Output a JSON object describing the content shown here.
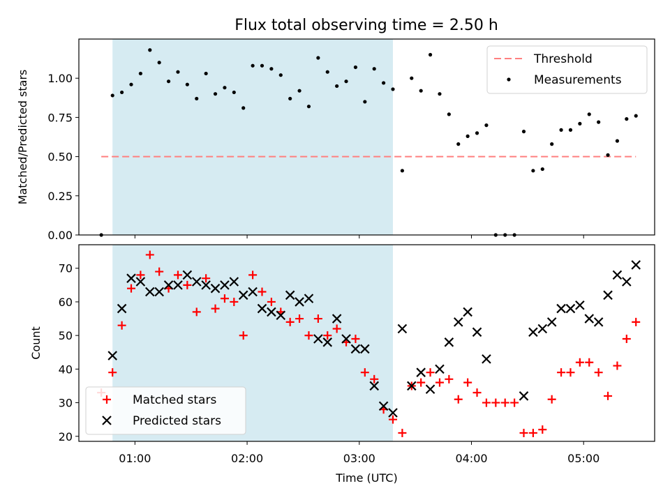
{
  "chart_data": {
    "title": "Flux total observing time = 2.50 h",
    "x_axis": {
      "label": "Time (UTC)",
      "unit": "hours UTC",
      "range": [
        "00:30",
        "05:38"
      ],
      "ticks": [
        {
          "value": "01:00",
          "label": "01:00"
        },
        {
          "value": "02:00",
          "label": "02:00"
        },
        {
          "value": "03:00",
          "label": "03:00"
        },
        {
          "value": "04:00",
          "label": "04:00"
        },
        {
          "value": "05:00",
          "label": "05:00"
        }
      ]
    },
    "shaded_region": {
      "x_start": "00:48",
      "x_end": "03:18",
      "color": "#add8e6"
    },
    "panels": [
      {
        "type": "scatter",
        "ylabel": "Matched/Predicted stars",
        "ylim": [
          0.0,
          1.25
        ],
        "yticks": [
          {
            "value": 0.0,
            "label": "0.00"
          },
          {
            "value": 0.25,
            "label": "0.25"
          },
          {
            "value": 0.5,
            "label": "0.50"
          },
          {
            "value": 0.75,
            "label": "0.75"
          },
          {
            "value": 1.0,
            "label": "1.00"
          }
        ],
        "legend": {
          "placement": "upper right",
          "entries": [
            {
              "name": "Threshold",
              "kind": "dashed-line",
              "color": "#ff7f7f"
            },
            {
              "name": "Measurements",
              "kind": "dot",
              "color": "#000000"
            }
          ]
        },
        "threshold": {
          "name": "Threshold",
          "y": 0.5,
          "x_start": "00:42",
          "x_end": "05:28",
          "color": "#ff7f7f",
          "style": "dashed"
        },
        "series": [
          {
            "name": "Measurements",
            "color": "#000000",
            "points": [
              [
                "00:42",
                0.0
              ],
              [
                "00:48",
                0.89
              ],
              [
                "00:53",
                0.91
              ],
              [
                "00:58",
                0.96
              ],
              [
                "01:03",
                1.03
              ],
              [
                "01:08",
                1.18
              ],
              [
                "01:13",
                1.1
              ],
              [
                "01:18",
                0.98
              ],
              [
                "01:23",
                1.04
              ],
              [
                "01:28",
                0.96
              ],
              [
                "01:33",
                0.87
              ],
              [
                "01:38",
                1.03
              ],
              [
                "01:43",
                0.9
              ],
              [
                "01:48",
                0.94
              ],
              [
                "01:53",
                0.91
              ],
              [
                "01:58",
                0.81
              ],
              [
                "02:03",
                1.08
              ],
              [
                "02:08",
                1.08
              ],
              [
                "02:13",
                1.06
              ],
              [
                "02:18",
                1.02
              ],
              [
                "02:23",
                0.87
              ],
              [
                "02:28",
                0.92
              ],
              [
                "02:33",
                0.82
              ],
              [
                "02:38",
                1.13
              ],
              [
                "02:43",
                1.04
              ],
              [
                "02:48",
                0.95
              ],
              [
                "02:53",
                0.98
              ],
              [
                "02:58",
                1.07
              ],
              [
                "03:03",
                0.85
              ],
              [
                "03:08",
                1.06
              ],
              [
                "03:13",
                0.97
              ],
              [
                "03:18",
                0.93
              ],
              [
                "03:23",
                0.41
              ],
              [
                "03:28",
                1.0
              ],
              [
                "03:33",
                0.92
              ],
              [
                "03:38",
                1.15
              ],
              [
                "03:43",
                0.9
              ],
              [
                "03:48",
                0.77
              ],
              [
                "03:53",
                0.58
              ],
              [
                "03:58",
                0.63
              ],
              [
                "04:03",
                0.65
              ],
              [
                "04:08",
                0.7
              ],
              [
                "04:13",
                0.0
              ],
              [
                "04:18",
                0.0
              ],
              [
                "04:23",
                0.0
              ],
              [
                "04:28",
                0.66
              ],
              [
                "04:33",
                0.41
              ],
              [
                "04:38",
                0.42
              ],
              [
                "04:43",
                0.58
              ],
              [
                "04:48",
                0.67
              ],
              [
                "04:53",
                0.67
              ],
              [
                "04:58",
                0.71
              ],
              [
                "05:03",
                0.77
              ],
              [
                "05:08",
                0.72
              ],
              [
                "05:13",
                0.51
              ],
              [
                "05:18",
                0.6
              ],
              [
                "05:23",
                0.74
              ],
              [
                "05:28",
                0.76
              ]
            ]
          }
        ]
      },
      {
        "type": "scatter",
        "ylabel": "Count",
        "ylim": [
          18.5,
          77
        ],
        "yticks": [
          {
            "value": 20,
            "label": "20"
          },
          {
            "value": 30,
            "label": "30"
          },
          {
            "value": 40,
            "label": "40"
          },
          {
            "value": 50,
            "label": "50"
          },
          {
            "value": 60,
            "label": "60"
          },
          {
            "value": 70,
            "label": "70"
          }
        ],
        "legend": {
          "placement": "lower left",
          "entries": [
            {
              "name": "Matched stars",
              "kind": "plus",
              "color": "#ff0000"
            },
            {
              "name": "Predicted stars",
              "kind": "x",
              "color": "#000000"
            }
          ]
        },
        "series": [
          {
            "name": "Matched stars",
            "marker": "plus",
            "color": "#ff0000",
            "points": [
              [
                "00:42",
                33
              ],
              [
                "00:48",
                39
              ],
              [
                "00:53",
                53
              ],
              [
                "00:58",
                64
              ],
              [
                "01:03",
                68
              ],
              [
                "01:08",
                74
              ],
              [
                "01:13",
                69
              ],
              [
                "01:18",
                64
              ],
              [
                "01:23",
                68
              ],
              [
                "01:28",
                65
              ],
              [
                "01:33",
                57
              ],
              [
                "01:38",
                67
              ],
              [
                "01:43",
                58
              ],
              [
                "01:48",
                61
              ],
              [
                "01:53",
                60
              ],
              [
                "01:58",
                50
              ],
              [
                "02:03",
                68
              ],
              [
                "02:08",
                63
              ],
              [
                "02:13",
                60
              ],
              [
                "02:18",
                57
              ],
              [
                "02:23",
                54
              ],
              [
                "02:28",
                55
              ],
              [
                "02:33",
                50
              ],
              [
                "02:38",
                55
              ],
              [
                "02:43",
                50
              ],
              [
                "02:48",
                52
              ],
              [
                "02:53",
                48
              ],
              [
                "02:58",
                49
              ],
              [
                "03:03",
                39
              ],
              [
                "03:08",
                37
              ],
              [
                "03:13",
                28
              ],
              [
                "03:18",
                25
              ],
              [
                "03:23",
                21
              ],
              [
                "03:28",
                35
              ],
              [
                "03:33",
                36
              ],
              [
                "03:38",
                39
              ],
              [
                "03:43",
                36
              ],
              [
                "03:48",
                37
              ],
              [
                "03:53",
                31
              ],
              [
                "03:58",
                36
              ],
              [
                "04:03",
                33
              ],
              [
                "04:08",
                30
              ],
              [
                "04:13",
                30
              ],
              [
                "04:18",
                30
              ],
              [
                "04:23",
                30
              ],
              [
                "04:28",
                21
              ],
              [
                "04:33",
                21
              ],
              [
                "04:38",
                22
              ],
              [
                "04:43",
                31
              ],
              [
                "04:48",
                39
              ],
              [
                "04:53",
                39
              ],
              [
                "04:58",
                42
              ],
              [
                "05:03",
                42
              ],
              [
                "05:08",
                39
              ],
              [
                "05:13",
                32
              ],
              [
                "05:18",
                41
              ],
              [
                "05:23",
                49
              ],
              [
                "05:28",
                54
              ]
            ]
          },
          {
            "name": "Predicted stars",
            "marker": "x",
            "color": "#000000",
            "points": [
              [
                "00:48",
                44
              ],
              [
                "00:53",
                58
              ],
              [
                "00:58",
                67
              ],
              [
                "01:03",
                66
              ],
              [
                "01:08",
                63
              ],
              [
                "01:13",
                63
              ],
              [
                "01:18",
                65
              ],
              [
                "01:23",
                65
              ],
              [
                "01:28",
                68
              ],
              [
                "01:33",
                66
              ],
              [
                "01:38",
                65
              ],
              [
                "01:43",
                64
              ],
              [
                "01:48",
                65
              ],
              [
                "01:53",
                66
              ],
              [
                "01:58",
                62
              ],
              [
                "02:03",
                63
              ],
              [
                "02:08",
                58
              ],
              [
                "02:13",
                57
              ],
              [
                "02:18",
                56
              ],
              [
                "02:23",
                62
              ],
              [
                "02:28",
                60
              ],
              [
                "02:33",
                61
              ],
              [
                "02:38",
                49
              ],
              [
                "02:43",
                48
              ],
              [
                "02:48",
                55
              ],
              [
                "02:53",
                49
              ],
              [
                "02:58",
                46
              ],
              [
                "03:03",
                46
              ],
              [
                "03:08",
                35
              ],
              [
                "03:13",
                29
              ],
              [
                "03:18",
                27
              ],
              [
                "03:23",
                52
              ],
              [
                "03:28",
                35
              ],
              [
                "03:33",
                39
              ],
              [
                "03:38",
                34
              ],
              [
                "03:43",
                40
              ],
              [
                "03:48",
                48
              ],
              [
                "03:53",
                54
              ],
              [
                "03:58",
                57
              ],
              [
                "04:03",
                51
              ],
              [
                "04:08",
                43
              ],
              [
                "04:28",
                32
              ],
              [
                "04:33",
                51
              ],
              [
                "04:38",
                52
              ],
              [
                "04:43",
                54
              ],
              [
                "04:48",
                58
              ],
              [
                "04:53",
                58
              ],
              [
                "04:58",
                59
              ],
              [
                "05:03",
                55
              ],
              [
                "05:08",
                54
              ],
              [
                "05:13",
                62
              ],
              [
                "05:18",
                68
              ],
              [
                "05:23",
                66
              ],
              [
                "05:28",
                71
              ]
            ]
          }
        ]
      }
    ]
  }
}
